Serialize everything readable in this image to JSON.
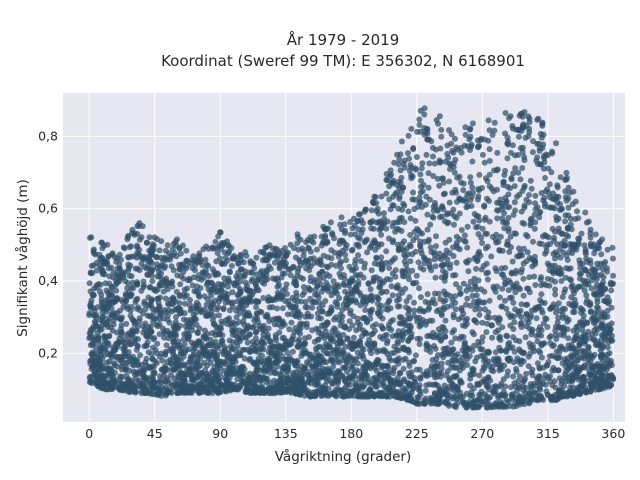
{
  "chart_data": {
    "type": "scatter",
    "title": "År 1979 - 2019",
    "subtitle": "Koordinat (Sweref 99 TM): E 356302, N 6168901",
    "xlabel": "Vågriktning (grader)",
    "ylabel": "Signifikant våghöjd (m)",
    "xlim": [
      -18,
      368
    ],
    "ylim": [
      0.01,
      0.92
    ],
    "x_ticks": [
      0,
      45,
      90,
      135,
      180,
      225,
      270,
      315,
      360
    ],
    "x_tick_labels": [
      "0",
      "45",
      "90",
      "135",
      "180",
      "225",
      "270",
      "315",
      "360"
    ],
    "y_ticks": [
      0.2,
      0.4,
      0.6,
      0.8
    ],
    "y_tick_labels": [
      "0,2",
      "0,4",
      "0,6",
      "0,8"
    ],
    "grid": true,
    "legend": "none",
    "marker_color": "#2f5169",
    "background_color": "#e6e7f0",
    "series": [
      {
        "x": [
          0,
          5,
          10,
          15,
          20,
          30,
          40,
          50,
          60,
          70,
          80,
          90,
          100,
          110,
          120,
          130,
          140,
          150,
          160,
          170,
          180,
          190,
          200,
          210,
          220,
          225,
          230,
          240,
          250,
          260,
          270,
          280,
          290,
          300,
          310,
          320,
          330,
          340,
          350,
          360
        ],
        "y_min": [
          0.12,
          0.11,
          0.1,
          0.1,
          0.1,
          0.09,
          0.09,
          0.08,
          0.09,
          0.09,
          0.09,
          0.09,
          0.1,
          0.09,
          0.09,
          0.09,
          0.09,
          0.08,
          0.08,
          0.08,
          0.08,
          0.08,
          0.08,
          0.08,
          0.07,
          0.06,
          0.06,
          0.06,
          0.05,
          0.05,
          0.05,
          0.05,
          0.05,
          0.06,
          0.07,
          0.07,
          0.08,
          0.09,
          0.1,
          0.11
        ],
        "y_max": [
          0.54,
          0.51,
          0.52,
          0.48,
          0.47,
          0.58,
          0.56,
          0.51,
          0.52,
          0.47,
          0.5,
          0.54,
          0.48,
          0.48,
          0.5,
          0.5,
          0.53,
          0.53,
          0.55,
          0.58,
          0.57,
          0.6,
          0.66,
          0.76,
          0.82,
          0.86,
          0.89,
          0.86,
          0.82,
          0.84,
          0.83,
          0.88,
          0.86,
          0.88,
          0.85,
          0.79,
          0.68,
          0.6,
          0.52,
          0.5
        ]
      }
    ]
  }
}
